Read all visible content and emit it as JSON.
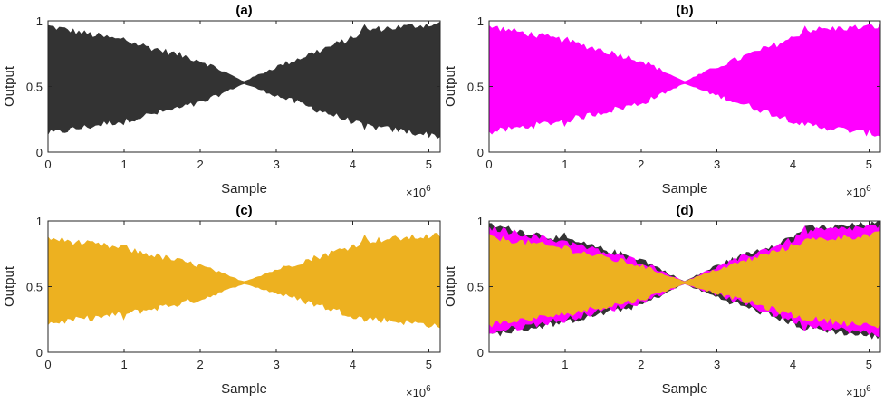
{
  "figure": {
    "background": "#ffffff"
  },
  "chart_data": [
    {
      "type": "area",
      "title": "(a)",
      "xlabel": "Sample",
      "ylabel": "Output",
      "x_multiplier": "×10",
      "x_exponent": "6",
      "xlim": [
        0,
        5.15
      ],
      "ylim": [
        0,
        1
      ],
      "xticks": [
        0,
        1,
        2,
        3,
        4,
        5
      ],
      "xtick_labels": [
        "0",
        "1",
        "2",
        "3",
        "4",
        "5"
      ],
      "yticks": [
        0,
        0.5,
        1
      ],
      "ytick_labels": [
        "0",
        "0.5",
        "1"
      ],
      "series": [
        {
          "name": "output",
          "color": "#333333",
          "x": [
            0,
            1,
            2,
            2.57,
            3,
            4,
            4.15,
            5.15
          ],
          "upper": [
            0.96,
            0.85,
            0.7,
            0.54,
            0.65,
            0.87,
            0.93,
            0.98
          ],
          "lower": [
            0.14,
            0.24,
            0.37,
            0.52,
            0.43,
            0.23,
            0.2,
            0.12
          ]
        }
      ],
      "spikes": [
        1.0,
        4.15
      ]
    },
    {
      "type": "area",
      "title": "(b)",
      "xlabel": "Sample",
      "ylabel": "Output",
      "x_multiplier": "×10",
      "x_exponent": "6",
      "xlim": [
        0,
        5.15
      ],
      "ylim": [
        0,
        1
      ],
      "xticks": [
        0,
        1,
        2,
        3,
        4,
        5
      ],
      "xtick_labels": [
        "0",
        "1",
        "2",
        "3",
        "4",
        "5"
      ],
      "yticks": [
        0,
        0.5,
        1
      ],
      "ytick_labels": [
        "0",
        "0.5",
        "1"
      ],
      "series": [
        {
          "name": "output",
          "color": "#ff00ff",
          "x": [
            0,
            1,
            2,
            2.57,
            3,
            4,
            4.15,
            5.15
          ],
          "upper": [
            0.96,
            0.85,
            0.7,
            0.54,
            0.65,
            0.87,
            0.93,
            0.96
          ],
          "lower": [
            0.15,
            0.24,
            0.37,
            0.52,
            0.43,
            0.24,
            0.21,
            0.13
          ]
        }
      ],
      "spikes": [
        1.0,
        4.15
      ]
    },
    {
      "type": "area",
      "title": "(c)",
      "xlabel": "Sample",
      "ylabel": "Output",
      "x_multiplier": "×10",
      "x_exponent": "6",
      "xlim": [
        0,
        5.15
      ],
      "ylim": [
        0,
        1
      ],
      "xticks": [
        0,
        1,
        2,
        3,
        4,
        5
      ],
      "xtick_labels": [
        "0",
        "1",
        "2",
        "3",
        "4",
        "5"
      ],
      "yticks": [
        0,
        0.5,
        1
      ],
      "ytick_labels": [
        "0",
        "0.5",
        "1"
      ],
      "series": [
        {
          "name": "output",
          "color": "#edb120",
          "x": [
            0,
            1,
            2,
            2.57,
            3,
            4,
            4.15,
            5.15
          ],
          "upper": [
            0.87,
            0.79,
            0.66,
            0.54,
            0.63,
            0.81,
            0.85,
            0.89
          ],
          "lower": [
            0.22,
            0.29,
            0.4,
            0.52,
            0.45,
            0.28,
            0.26,
            0.2
          ]
        }
      ],
      "spikes": [
        1.0,
        4.15
      ]
    },
    {
      "type": "area",
      "title": "(d)",
      "xlabel": "Sample",
      "ylabel": "Output",
      "x_multiplier": "×10",
      "x_exponent": "6",
      "xlim": [
        0,
        5.15
      ],
      "ylim": [
        0,
        1
      ],
      "xticks": [
        1,
        2,
        3,
        4,
        5
      ],
      "xtick_labels": [
        "1",
        "2",
        "3",
        "4",
        "5"
      ],
      "yticks": [
        0,
        0.5,
        1
      ],
      "ytick_labels": [
        "0",
        "0.5",
        "1"
      ],
      "series": [
        {
          "name": "black",
          "color": "#333333",
          "x": [
            0,
            1,
            2,
            2.57,
            3,
            4,
            4.15,
            5.15
          ],
          "upper": [
            0.97,
            0.86,
            0.71,
            0.54,
            0.66,
            0.88,
            0.94,
            0.98
          ],
          "lower": [
            0.13,
            0.23,
            0.36,
            0.52,
            0.42,
            0.22,
            0.19,
            0.11
          ]
        },
        {
          "name": "magenta",
          "color": "#ff00ff",
          "x": [
            0,
            1,
            2,
            2.57,
            3,
            4,
            4.15,
            5.15
          ],
          "upper": [
            0.95,
            0.84,
            0.69,
            0.54,
            0.65,
            0.86,
            0.92,
            0.96
          ],
          "lower": [
            0.15,
            0.25,
            0.38,
            0.52,
            0.44,
            0.24,
            0.21,
            0.13
          ]
        },
        {
          "name": "orange",
          "color": "#edb120",
          "x": [
            0,
            1,
            2,
            2.57,
            3,
            4,
            4.15,
            5.15
          ],
          "upper": [
            0.88,
            0.79,
            0.66,
            0.54,
            0.63,
            0.81,
            0.85,
            0.9
          ],
          "lower": [
            0.21,
            0.29,
            0.4,
            0.52,
            0.45,
            0.28,
            0.26,
            0.19
          ]
        }
      ],
      "spikes": [
        1.0,
        4.15
      ]
    }
  ]
}
